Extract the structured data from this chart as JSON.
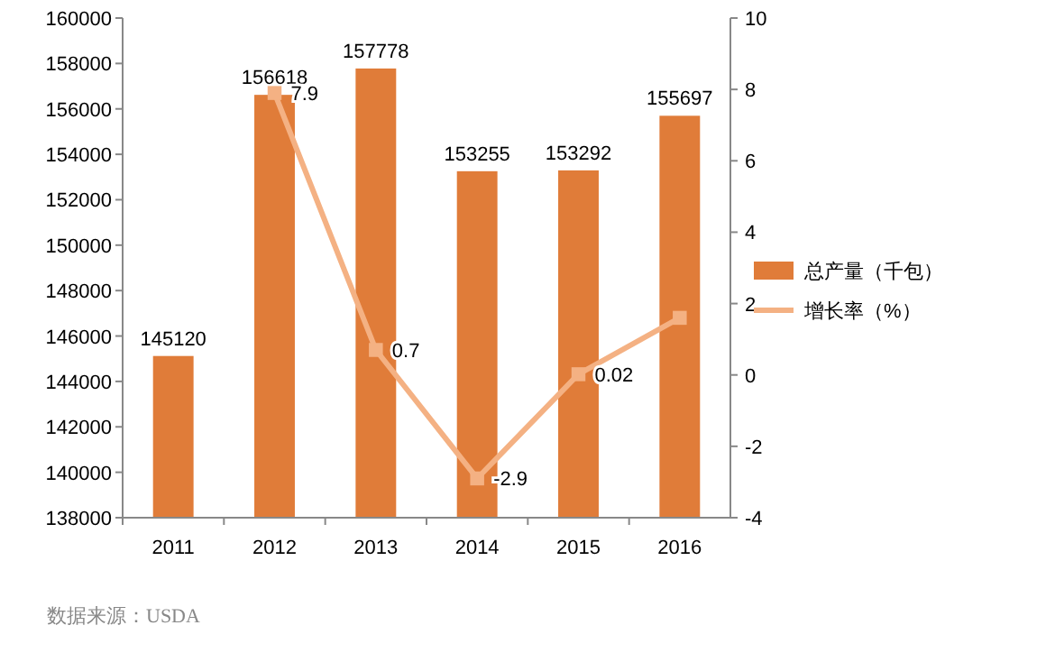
{
  "chart_data": {
    "type": "bar",
    "categories": [
      "2011",
      "2012",
      "2013",
      "2014",
      "2015",
      "2016"
    ],
    "series": [
      {
        "name": "总产量（千包）",
        "color": "#e07c39",
        "values": [
          145120,
          156618,
          157778,
          153255,
          153292,
          155697
        ],
        "value_labels": [
          "145120",
          "156618",
          "157778",
          "153255",
          "153292",
          "155697"
        ]
      },
      {
        "name": "增长率（%）",
        "type": "line",
        "axis": "y2",
        "color": "#f4b183",
        "marker": "square",
        "values": [
          null,
          7.9,
          0.7,
          -2.9,
          0.02,
          1.6
        ],
        "value_labels": [
          null,
          "7.9",
          "0.7",
          "-2.9",
          "0.02",
          null
        ]
      }
    ],
    "ylim": [
      138000,
      160000
    ],
    "yticks": [
      138000,
      140000,
      142000,
      144000,
      146000,
      148000,
      150000,
      152000,
      154000,
      156000,
      158000,
      160000
    ],
    "y2lim": [
      -4,
      10
    ],
    "y2ticks": [
      -4,
      -2,
      0,
      2,
      4,
      6,
      8,
      10
    ],
    "grid": false,
    "legend": "right",
    "annotations": [
      "数据来源：USDA"
    ]
  }
}
